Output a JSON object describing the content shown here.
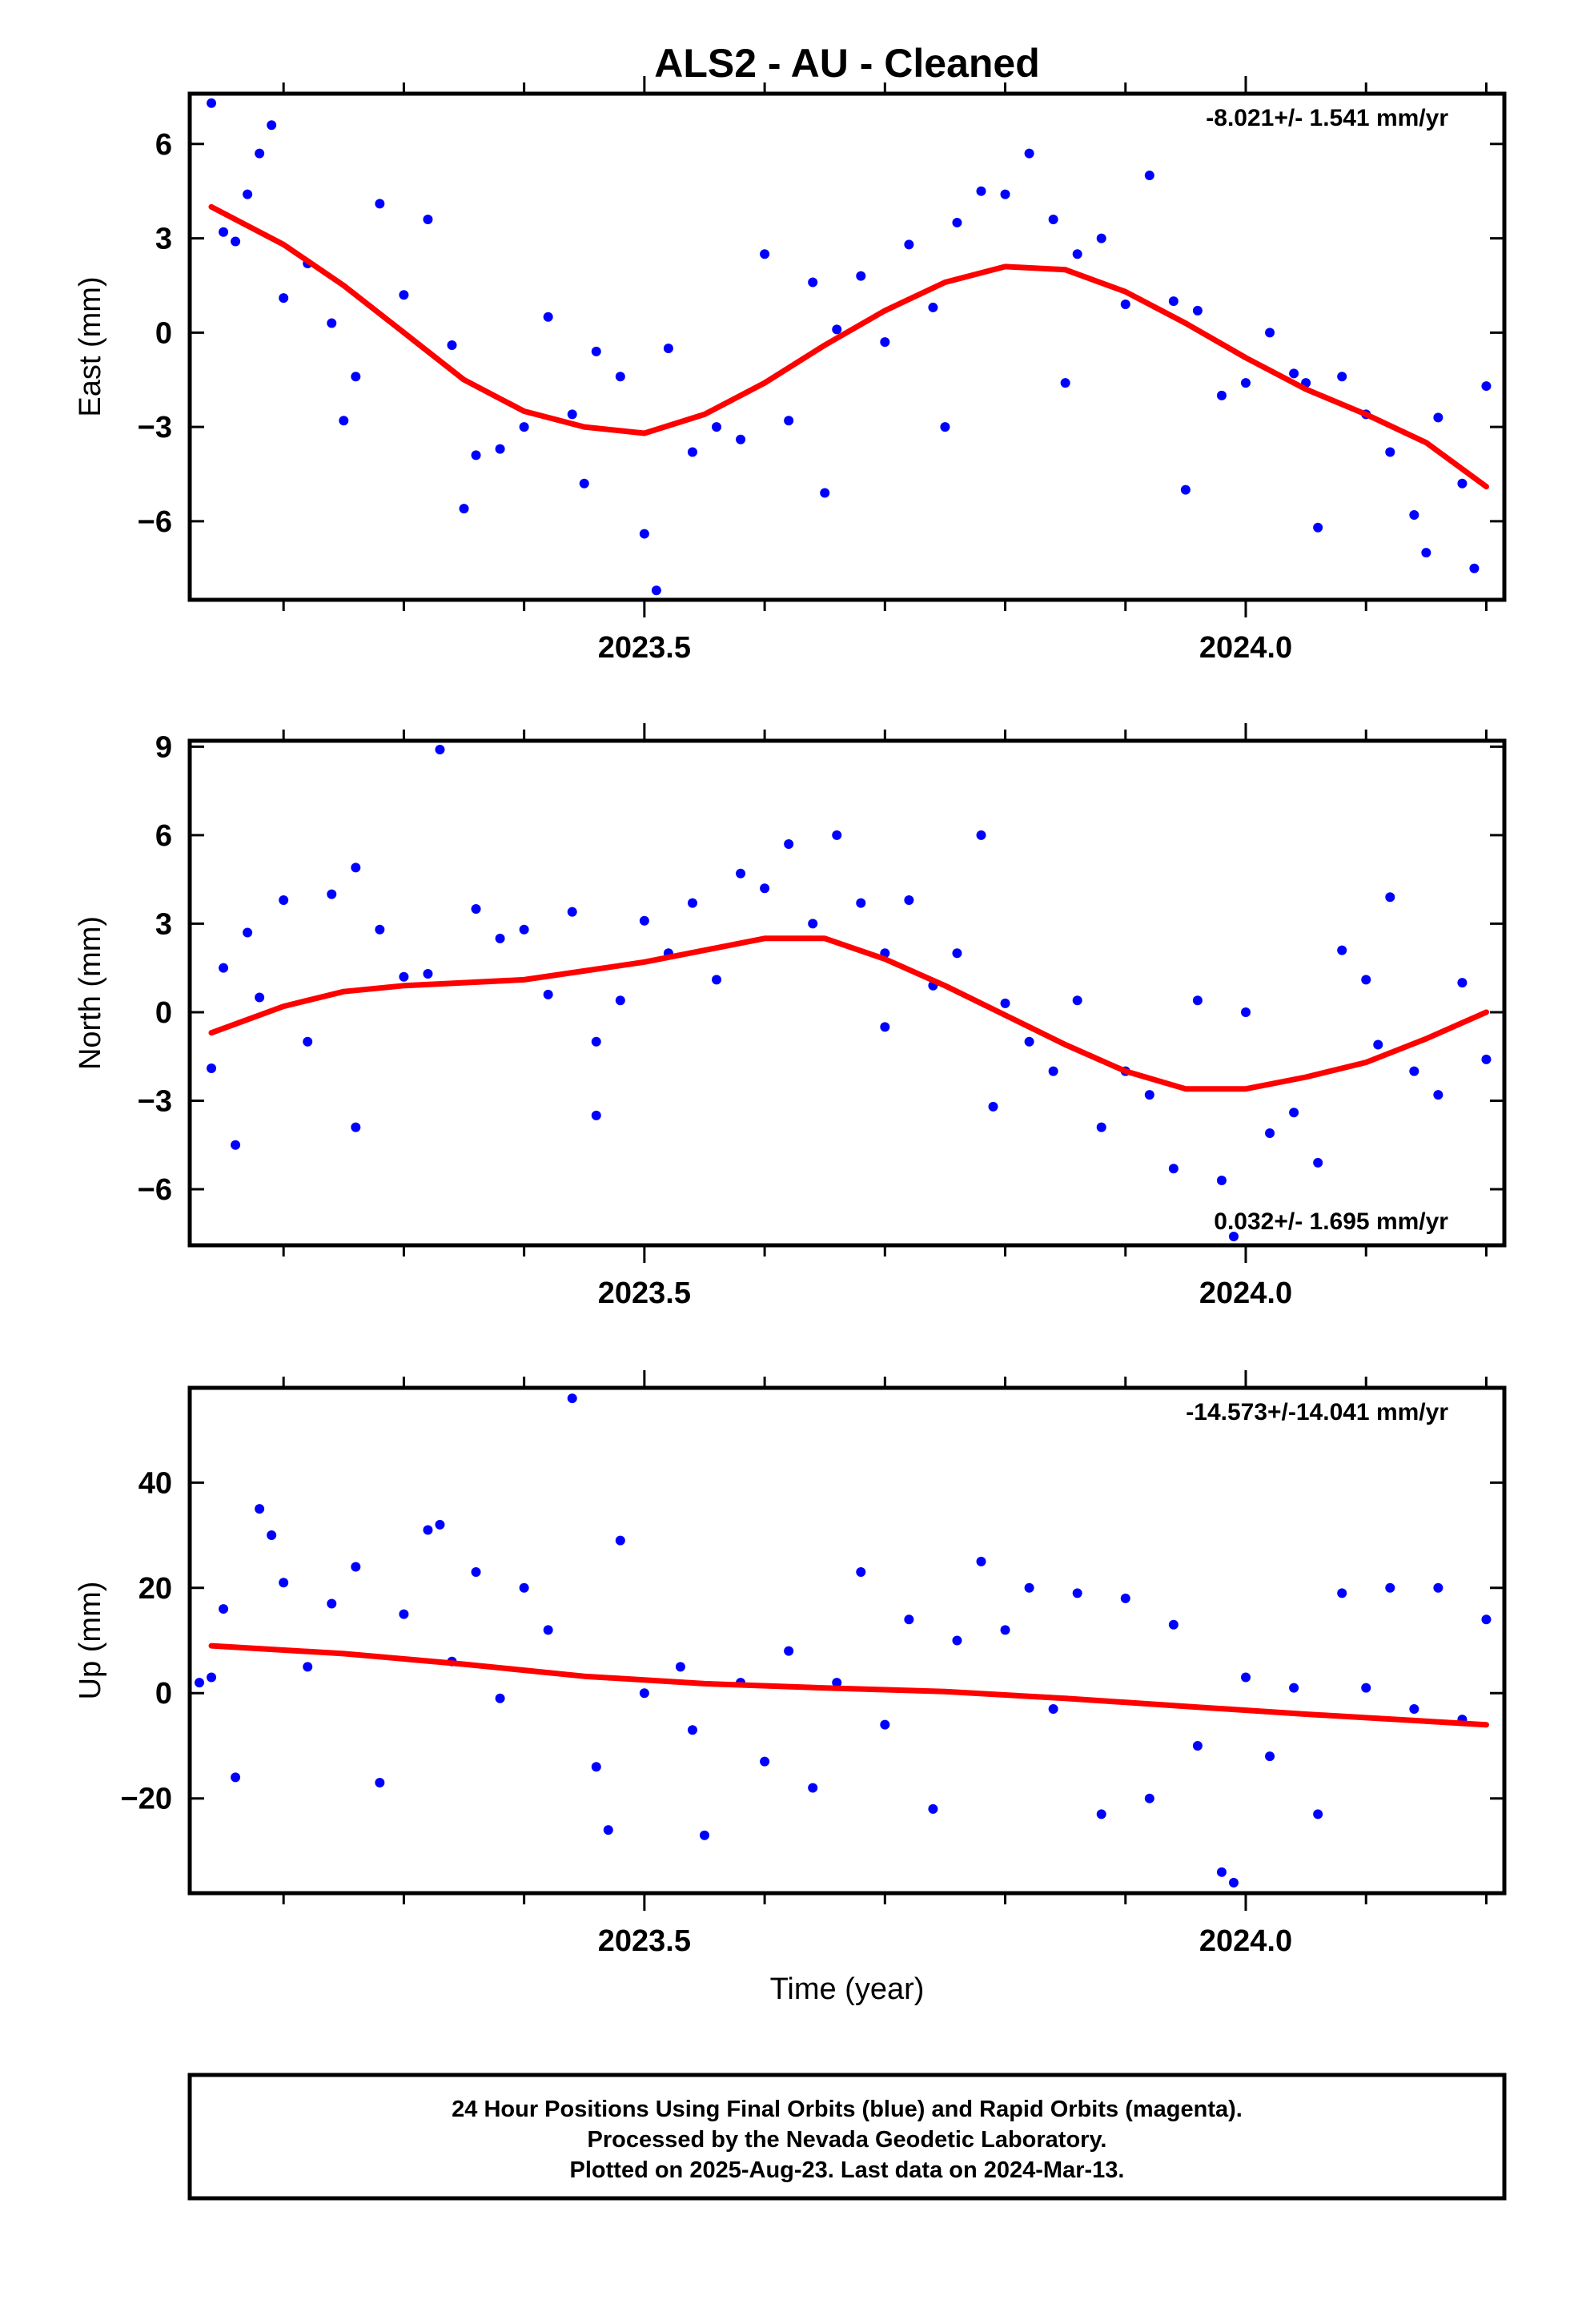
{
  "title": "ALS2  - AU - Cleaned",
  "colors": {
    "data": "#0000ff",
    "fit": "#ff0000",
    "frame": "#000000"
  },
  "footer": {
    "line1": "24 Hour Positions Using Final Orbits (blue) and Rapid Orbits (magenta).",
    "line2": "Processed by the Nevada Geodetic Laboratory.",
    "line3": "Plotted on 2025-Aug-23. Last data on 2024-Mar-13."
  },
  "chart_data": [
    {
      "type": "scatter",
      "ylabel": "East (mm)",
      "xlabel": "",
      "xlim": [
        2023.122,
        2024.215
      ],
      "ylim": [
        -8.5,
        7.6
      ],
      "xticks": [
        2023.5,
        2024.0
      ],
      "xticklabels": [
        "2023.5",
        "2024.0"
      ],
      "xminor": [
        2023.2,
        2023.3,
        2023.4,
        2023.6,
        2023.7,
        2023.8,
        2023.9,
        2024.1,
        2024.2
      ],
      "yticks": [
        -6,
        -3,
        0,
        3,
        6
      ],
      "yticklabels": [
        "−6",
        "−3",
        "0",
        "3",
        "6"
      ],
      "rate_label": "-8.021+/- 1.541 mm/yr",
      "rate_position": "top-right",
      "series": [
        {
          "marker": "points",
          "x": [
            2023.14,
            2023.15,
            2023.17,
            2023.18,
            2023.2,
            2023.22,
            2023.24,
            2023.26,
            2023.28,
            2023.3,
            2023.32,
            2023.34,
            2023.36,
            2023.38,
            2023.4,
            2023.42,
            2023.44,
            2023.46,
            2023.48,
            2023.5,
            2023.51,
            2023.52,
            2023.54,
            2023.56,
            2023.58,
            2023.6,
            2023.62,
            2023.64,
            2023.66,
            2023.68,
            2023.7,
            2023.72,
            2023.74,
            2023.76,
            2023.78,
            2023.8,
            2023.82,
            2023.84,
            2023.86,
            2023.88,
            2023.9,
            2023.92,
            2023.94,
            2023.96,
            2023.98,
            2024.0,
            2024.02,
            2024.04,
            2024.06,
            2024.08,
            2024.1,
            2024.12,
            2024.14,
            2024.16,
            2024.18,
            2024.2,
            2023.16,
            2023.19,
            2023.25,
            2023.35,
            2023.45,
            2023.65,
            2023.75,
            2023.85,
            2023.95,
            2024.05,
            2024.15,
            2024.19
          ],
          "y": [
            7.3,
            3.2,
            4.4,
            5.7,
            1.1,
            2.2,
            0.3,
            -1.4,
            4.1,
            1.2,
            3.6,
            -0.4,
            -3.9,
            -3.7,
            -3.0,
            0.5,
            -2.6,
            -0.6,
            -1.4,
            -6.4,
            -8.2,
            -0.5,
            -3.8,
            -3.0,
            -3.4,
            2.5,
            -2.8,
            1.6,
            0.1,
            1.8,
            -0.3,
            2.8,
            0.8,
            3.5,
            4.5,
            4.4,
            5.7,
            3.6,
            2.5,
            3.0,
            0.9,
            5.0,
            1.0,
            0.7,
            -2.0,
            -1.6,
            0.0,
            -1.3,
            -6.2,
            -1.4,
            -2.6,
            -3.8,
            -5.8,
            -2.7,
            -4.8,
            -1.7,
            2.9,
            6.6,
            -2.8,
            -5.6,
            -4.8,
            -5.1,
            -3.0,
            -1.6,
            -5.0,
            -1.6,
            -7.0,
            -7.5
          ]
        },
        {
          "marker": "line",
          "name": "",
          "x": [
            2023.14,
            2023.2,
            2023.25,
            2023.3,
            2023.35,
            2023.4,
            2023.45,
            2023.5,
            2023.55,
            2023.6,
            2023.65,
            2023.7,
            2023.75,
            2023.8,
            2023.85,
            2023.9,
            2023.95,
            2024.0,
            2024.05,
            2024.1,
            2024.15,
            2024.2
          ],
          "y": [
            4.0,
            2.8,
            1.5,
            0.0,
            -1.5,
            -2.5,
            -3.0,
            -3.2,
            -2.6,
            -1.6,
            -0.4,
            0.7,
            1.6,
            2.1,
            2.0,
            1.3,
            0.3,
            -0.8,
            -1.8,
            -2.6,
            -3.5,
            -4.9
          ]
        }
      ]
    },
    {
      "type": "scatter",
      "ylabel": "North (mm)",
      "xlabel": "",
      "xlim": [
        2023.122,
        2024.215
      ],
      "ylim": [
        -7.9,
        9.2
      ],
      "xticks": [
        2023.5,
        2024.0
      ],
      "xticklabels": [
        "2023.5",
        "2024.0"
      ],
      "xminor": [
        2023.2,
        2023.3,
        2023.4,
        2023.6,
        2023.7,
        2023.8,
        2023.9,
        2024.1,
        2024.2
      ],
      "yticks": [
        -6,
        -3,
        0,
        3,
        6,
        9
      ],
      "yticklabels": [
        "−6",
        "−3",
        "0",
        "3",
        "6",
        "9"
      ],
      "rate_label": "0.032+/- 1.695 mm/yr",
      "rate_position": "bottom-right",
      "series": [
        {
          "marker": "points",
          "x": [
            2023.14,
            2023.15,
            2023.17,
            2023.18,
            2023.2,
            2023.22,
            2023.24,
            2023.26,
            2023.28,
            2023.3,
            2023.32,
            2023.33,
            2023.36,
            2023.38,
            2023.4,
            2023.42,
            2023.44,
            2023.46,
            2023.48,
            2023.5,
            2023.52,
            2023.54,
            2023.56,
            2023.58,
            2023.6,
            2023.62,
            2023.64,
            2023.66,
            2023.68,
            2023.7,
            2023.72,
            2023.74,
            2023.76,
            2023.78,
            2023.8,
            2023.82,
            2023.84,
            2023.86,
            2023.88,
            2023.9,
            2023.92,
            2023.94,
            2023.96,
            2023.98,
            2024.0,
            2024.02,
            2024.04,
            2024.06,
            2024.08,
            2024.1,
            2024.12,
            2024.14,
            2024.16,
            2024.18,
            2024.2,
            2023.16,
            2023.26,
            2023.46,
            2023.7,
            2023.79,
            2023.99,
            2024.11
          ],
          "y": [
            -1.9,
            1.5,
            2.7,
            0.5,
            3.8,
            -1.0,
            4.0,
            4.9,
            2.8,
            1.2,
            1.3,
            8.9,
            3.5,
            2.5,
            2.8,
            0.6,
            3.4,
            -1.0,
            0.4,
            3.1,
            2.0,
            3.7,
            1.1,
            4.7,
            4.2,
            5.7,
            3.0,
            6.0,
            3.7,
            2.0,
            3.8,
            0.9,
            2.0,
            6.0,
            0.3,
            -1.0,
            -2.0,
            0.4,
            -3.9,
            -2.0,
            -2.8,
            -5.3,
            0.4,
            -5.7,
            0.0,
            -4.1,
            -3.4,
            -5.1,
            2.1,
            1.1,
            3.9,
            -2.0,
            -2.8,
            1.0,
            -1.6,
            -4.5,
            -3.9,
            -3.5,
            -0.5,
            -3.2,
            -7.6,
            -1.1
          ]
        },
        {
          "marker": "line",
          "name": "",
          "x": [
            2023.14,
            2023.2,
            2023.25,
            2023.3,
            2023.35,
            2023.4,
            2023.45,
            2023.5,
            2023.55,
            2023.6,
            2023.65,
            2023.7,
            2023.75,
            2023.8,
            2023.85,
            2023.9,
            2023.95,
            2024.0,
            2024.05,
            2024.1,
            2024.15,
            2024.2
          ],
          "y": [
            -0.7,
            0.2,
            0.7,
            0.9,
            1.0,
            1.1,
            1.4,
            1.7,
            2.1,
            2.5,
            2.5,
            1.8,
            0.9,
            -0.1,
            -1.1,
            -2.0,
            -2.6,
            -2.6,
            -2.2,
            -1.7,
            -0.9,
            0.0
          ]
        }
      ]
    },
    {
      "type": "scatter",
      "ylabel": "Up (mm)",
      "xlabel": "Time (year)",
      "xlim": [
        2023.122,
        2024.215
      ],
      "ylim": [
        -38,
        58
      ],
      "xticks": [
        2023.5,
        2024.0
      ],
      "xticklabels": [
        "2023.5",
        "2024.0"
      ],
      "xminor": [
        2023.2,
        2023.3,
        2023.4,
        2023.6,
        2023.7,
        2023.8,
        2023.9,
        2024.1,
        2024.2
      ],
      "yticks": [
        -20,
        0,
        20,
        40
      ],
      "yticklabels": [
        "−20",
        "0",
        "20",
        "40"
      ],
      "rate_label": "-14.573+/-14.041 mm/yr",
      "rate_position": "top-right",
      "series": [
        {
          "marker": "points",
          "x": [
            2023.14,
            2023.15,
            2023.16,
            2023.18,
            2023.19,
            2023.2,
            2023.22,
            2023.24,
            2023.26,
            2023.28,
            2023.3,
            2023.32,
            2023.34,
            2023.36,
            2023.38,
            2023.4,
            2023.42,
            2023.44,
            2023.46,
            2023.48,
            2023.5,
            2023.53,
            2023.55,
            2023.58,
            2023.6,
            2023.62,
            2023.64,
            2023.66,
            2023.68,
            2023.7,
            2023.72,
            2023.74,
            2023.76,
            2023.78,
            2023.8,
            2023.82,
            2023.84,
            2023.86,
            2023.88,
            2023.9,
            2023.92,
            2023.94,
            2023.96,
            2023.98,
            2024.0,
            2024.02,
            2024.04,
            2024.06,
            2024.08,
            2024.1,
            2024.12,
            2024.14,
            2024.16,
            2024.18,
            2024.2,
            2023.54,
            2023.47,
            2023.99,
            2023.33,
            2023.13
          ],
          "y": [
            3.0,
            16.0,
            -16.0,
            35.0,
            30.0,
            21.0,
            5.0,
            17.0,
            24.0,
            -17.0,
            15.0,
            31.0,
            6.0,
            23.0,
            -1.0,
            20.0,
            12.0,
            56.0,
            -14.0,
            29.0,
            0.0,
            5.0,
            -27.0,
            2.0,
            -13.0,
            8.0,
            -18.0,
            2.0,
            23.0,
            -6.0,
            14.0,
            -22.0,
            10.0,
            25.0,
            12.0,
            20.0,
            -3.0,
            19.0,
            -23.0,
            18.0,
            -20.0,
            13.0,
            -10.0,
            -34.0,
            3.0,
            -12.0,
            1.0,
            -23.0,
            19.0,
            1.0,
            20.0,
            -3.0,
            20.0,
            -5.0,
            14.0,
            -7.0,
            -26.0,
            -36.0,
            32.0,
            2.0
          ]
        },
        {
          "marker": "line",
          "name": "",
          "x": [
            2023.14,
            2023.25,
            2023.35,
            2023.45,
            2023.55,
            2023.65,
            2023.75,
            2023.85,
            2023.95,
            2024.05,
            2024.2
          ],
          "y": [
            9.0,
            7.5,
            5.5,
            3.2,
            1.8,
            1.0,
            0.3,
            -1.0,
            -2.5,
            -4.0,
            -6.0
          ]
        }
      ]
    }
  ]
}
